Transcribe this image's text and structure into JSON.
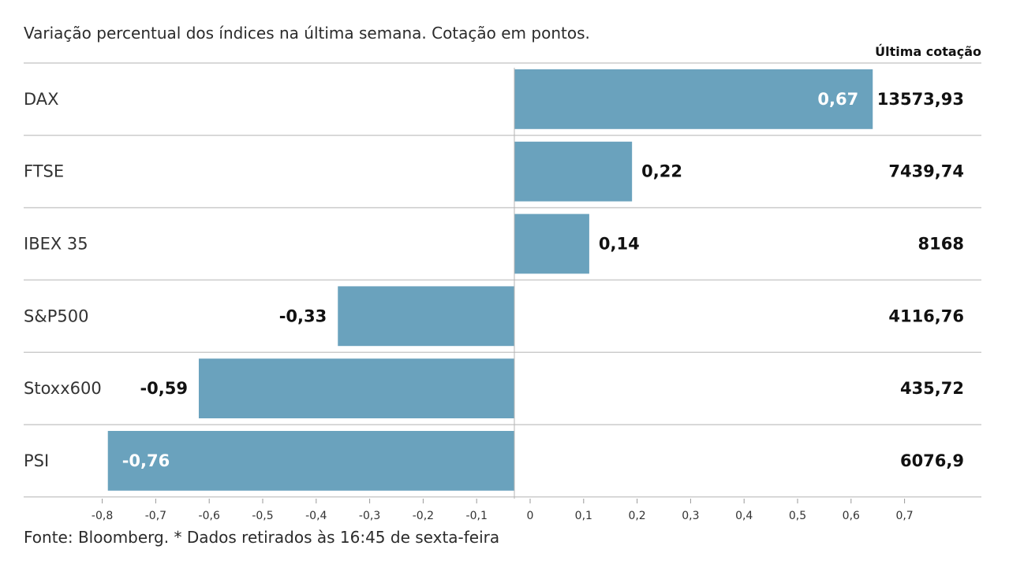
{
  "chart_data": {
    "type": "bar",
    "orientation": "horizontal",
    "title": "Variação percentual dos índices na última semana. Cotação em pontos.",
    "column_header": "Última cotação",
    "categories": [
      "DAX",
      "FTSE",
      "IBEX 35",
      "S&P500",
      "Stoxx600",
      "PSI"
    ],
    "values": [
      0.67,
      0.22,
      0.14,
      -0.33,
      -0.59,
      -0.76
    ],
    "value_labels": [
      "0,67",
      "0,22",
      "0,14",
      "-0,33",
      "-0,59",
      "-0,76"
    ],
    "last_quote": [
      "13573,93",
      "7439,74",
      "8168",
      "4116,76",
      "435,72",
      "6076,9"
    ],
    "xlim": [
      -0.8,
      0.7
    ],
    "ticks": [
      -0.8,
      -0.7,
      -0.6,
      -0.5,
      -0.4,
      -0.3,
      -0.2,
      -0.1,
      0,
      0.1,
      0.2,
      0.3,
      0.4,
      0.5,
      0.6,
      0.7
    ],
    "tick_labels": [
      "-0,8",
      "-0,7",
      "-0,6",
      "-0,5",
      "-0,4",
      "-0,3",
      "-0,2",
      "-0,1",
      "0",
      "0,1",
      "0,2",
      "0,3",
      "0,4",
      "0,5",
      "0,6",
      "0,7"
    ],
    "grid": false,
    "bar_color": "#6aa2bd",
    "separator_color": "#cccccc",
    "footer": "Fonte: Bloomberg.  * Dados retirados às 16:45 de sexta-feira"
  }
}
